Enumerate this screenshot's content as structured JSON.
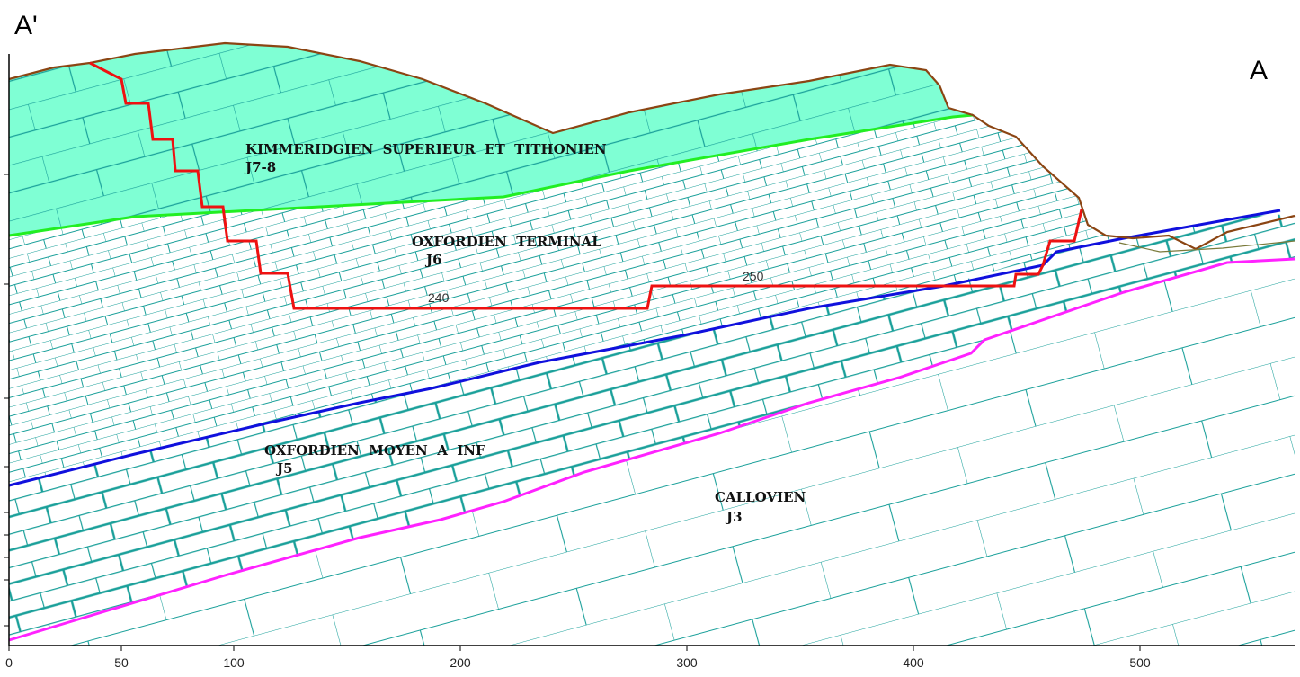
{
  "section_marks": {
    "left": "A'",
    "right": "A"
  },
  "formations": [
    {
      "name": "KIMMERIDGIEN  SUPERIEUR  ET  TITHONIEN",
      "code": "J7-8"
    },
    {
      "name": "OXFORDIEN  TERMINAL",
      "code": "J6"
    },
    {
      "name": "OXFORDIEN  MOYEN  A  INF",
      "code": "J5"
    },
    {
      "name": "CALLOVIEN",
      "code": "J3"
    }
  ],
  "contours": [
    {
      "label": "240"
    },
    {
      "label": "250"
    }
  ],
  "x_axis": {
    "ticks": [
      "0",
      "50",
      "100",
      "200",
      "300",
      "400",
      "500"
    ]
  },
  "colors": {
    "j78_fill": "#7fffd4",
    "hatch": "#1aa09a",
    "topography": "#8b4513",
    "contact_j78_j6": "#22ee22",
    "contact_j6_j5": "#1010dd",
    "contact_j3": "#ff22ff",
    "profile_line": "#ee1111"
  }
}
